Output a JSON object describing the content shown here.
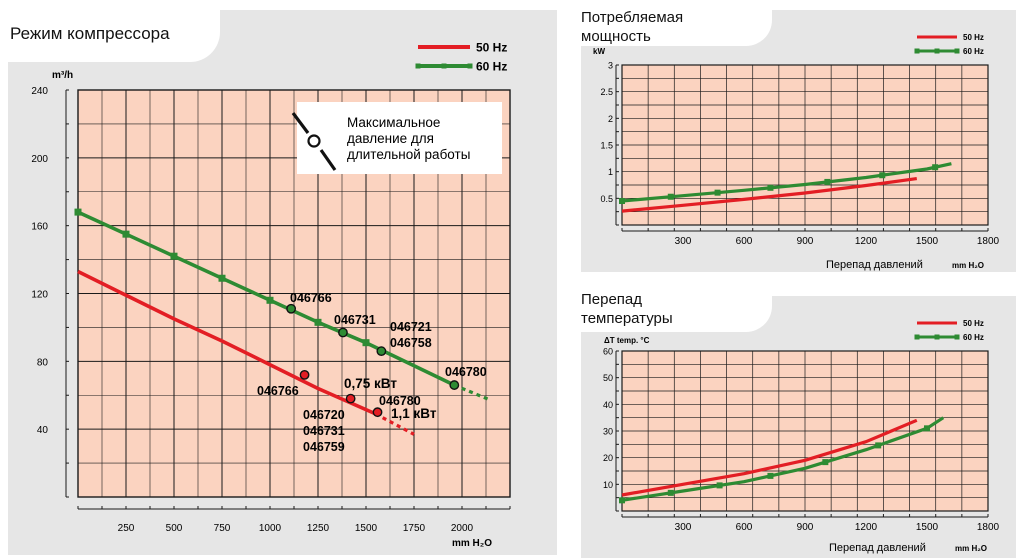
{
  "colors": {
    "plot_bg": "#fbd3c0",
    "grid": "#1a1a1a",
    "red": "#e31e24",
    "green": "#2e8b33",
    "panel_bg": "#e6e6e6"
  },
  "chart_data": [
    {
      "type": "line",
      "title": "Режим компрессора",
      "ylabel": "m³/h",
      "xlabel": "mm H₂O",
      "xlim": [
        0,
        2250
      ],
      "ylim": [
        0,
        240
      ],
      "x_ticks": [
        250,
        500,
        750,
        1000,
        1250,
        1500,
        1750,
        2000
      ],
      "y_ticks": [
        40,
        80,
        120,
        160,
        200,
        240
      ],
      "legend": [
        "50 Hz",
        "60 Hz"
      ],
      "legend_position": "top-right",
      "series": [
        {
          "name": "50 Hz",
          "color": "red",
          "x": [
            0,
            250,
            500,
            750,
            1000,
            1250,
            1550
          ],
          "y": [
            133,
            119,
            105,
            92,
            78,
            64,
            49
          ],
          "dashed": {
            "x": [
              1550,
              1750
            ],
            "y": [
              49,
              37
            ]
          },
          "points": [
            {
              "x": 1180,
              "y": 72,
              "label": "046766"
            },
            {
              "x": 1420,
              "y": 58,
              "label": "0,75 кВт"
            },
            {
              "x": 1560,
              "y": 50,
              "label": "1,1 кВт"
            }
          ]
        },
        {
          "name": "60 Hz",
          "color": "green",
          "x": [
            0,
            250,
            500,
            750,
            1000,
            1250,
            1500,
            1960
          ],
          "y": [
            168,
            155,
            142,
            129,
            116,
            103,
            91,
            66
          ],
          "dashed": {
            "x": [
              1960,
              2150
            ],
            "y": [
              66,
              57
            ]
          },
          "points": [
            {
              "x": 1110,
              "y": 111,
              "label": "046766"
            },
            {
              "x": 1380,
              "y": 97,
              "label": "046731"
            },
            {
              "x": 1580,
              "y": 86,
              "label": "046721"
            },
            {
              "x": 1960,
              "y": 66,
              "label": "046780"
            }
          ]
        }
      ],
      "annotations": {
        "max_pressure": [
          "Максимальное",
          "давление для",
          "длительной работы"
        ],
        "label_046758": "046758",
        "label_046780_red": "046780",
        "red_models": [
          "046720",
          "046731",
          "046759"
        ]
      }
    },
    {
      "type": "line",
      "title_lines": [
        "Потребляемая",
        "мощность"
      ],
      "ylabel": "kW",
      "xlabel": "Перепад давлений",
      "xunit": "mm H₂O",
      "xlim": [
        0,
        1800
      ],
      "ylim": [
        0,
        3
      ],
      "x_ticks": [
        300,
        600,
        900,
        1200,
        1500,
        1800
      ],
      "y_ticks": [
        0.5,
        1,
        1.5,
        2,
        2.5,
        3
      ],
      "legend": [
        "50 Hz",
        "60 Hz"
      ],
      "legend_position": "top-right",
      "series": [
        {
          "name": "50 Hz",
          "color": "red",
          "x": [
            0,
            300,
            600,
            900,
            1200,
            1450
          ],
          "y": [
            0.26,
            0.37,
            0.48,
            0.6,
            0.74,
            0.87
          ]
        },
        {
          "name": "60 Hz",
          "color": "green",
          "x": [
            0,
            300,
            600,
            900,
            1200,
            1500,
            1620
          ],
          "y": [
            0.45,
            0.55,
            0.65,
            0.76,
            0.89,
            1.05,
            1.15
          ],
          "markers_x": [
            0,
            240,
            470,
            730,
            1010,
            1280,
            1540
          ]
        }
      ]
    },
    {
      "type": "line",
      "title_lines": [
        "Перепад",
        "температуры"
      ],
      "ylabel": "ΔT  temp. °C",
      "xlabel": "Перепад давлений",
      "xunit": "mm H₂O",
      "xlim": [
        0,
        1800
      ],
      "ylim": [
        0,
        60
      ],
      "x_ticks": [
        300,
        600,
        900,
        1200,
        1500,
        1800
      ],
      "y_ticks": [
        10,
        20,
        30,
        40,
        50,
        60
      ],
      "legend": [
        "50 Hz",
        "60 Hz"
      ],
      "legend_position": "top-right",
      "series": [
        {
          "name": "50 Hz",
          "color": "red",
          "x": [
            0,
            300,
            600,
            900,
            1200,
            1450
          ],
          "y": [
            6,
            10,
            14,
            19,
            26,
            34
          ]
        },
        {
          "name": "60 Hz",
          "color": "green",
          "x": [
            0,
            300,
            600,
            900,
            1200,
            1500,
            1580
          ],
          "y": [
            4,
            7.5,
            11,
            16,
            23,
            31,
            35
          ],
          "markers_x": [
            0,
            240,
            480,
            730,
            1000,
            1260,
            1500
          ]
        }
      ]
    }
  ]
}
